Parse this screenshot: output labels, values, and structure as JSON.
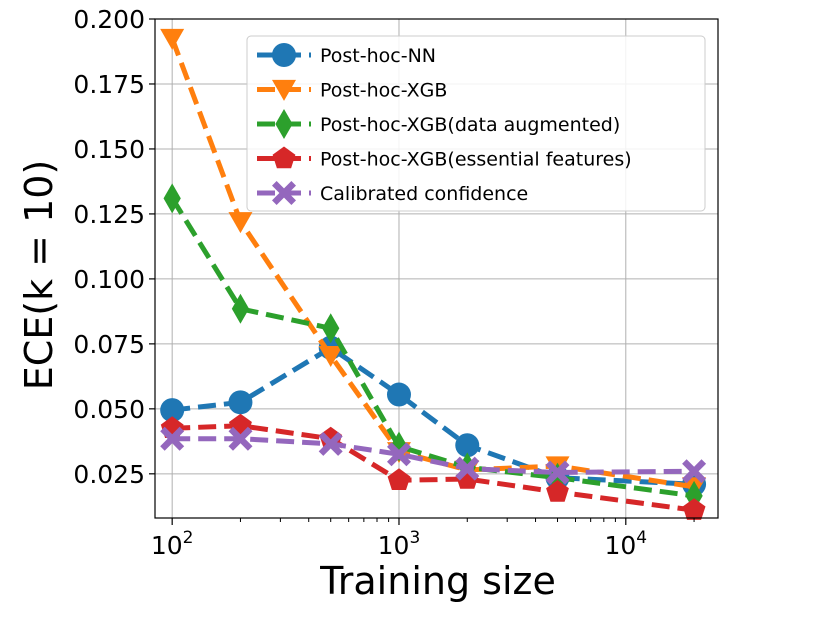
{
  "chart_data": {
    "type": "line",
    "xscale": "log",
    "xlabel": "Training size",
    "ylabel": "ECE(k = 10)",
    "xlim": [
      84,
      25500
    ],
    "ylim": [
      0.008,
      0.2
    ],
    "x_ticks": [
      {
        "value": 100,
        "base": "10",
        "exp": "2"
      },
      {
        "value": 1000,
        "base": "10",
        "exp": "3"
      },
      {
        "value": 10000,
        "base": "10",
        "exp": "4"
      }
    ],
    "y_ticks": [
      "0.025",
      "0.050",
      "0.075",
      "0.100",
      "0.125",
      "0.150",
      "0.175",
      "0.200"
    ],
    "grid": true,
    "legend_position": "top-right",
    "x": [
      100,
      200,
      500,
      1000,
      2000,
      5000,
      20000
    ],
    "series": [
      {
        "name": "Post-hoc-NN",
        "color": "#1f77b4",
        "marker": "circle",
        "values": [
          0.0495,
          0.0525,
          0.0735,
          0.0555,
          0.036,
          0.0235,
          0.021
        ]
      },
      {
        "name": "Post-hoc-XGB",
        "color": "#ff7f0e",
        "marker": "triangle-down",
        "values": [
          0.1925,
          0.122,
          0.0705,
          0.0335,
          0.0265,
          0.028,
          0.02
        ]
      },
      {
        "name": "Post-hoc-XGB(data augmented)",
        "color": "#2ca02c",
        "marker": "diamond",
        "values": [
          0.131,
          0.0885,
          0.081,
          0.0355,
          0.0275,
          0.0235,
          0.0165
        ]
      },
      {
        "name": "Post-hoc-XGB(essential features)",
        "color": "#d62728",
        "marker": "pentagon",
        "values": [
          0.0425,
          0.0435,
          0.0385,
          0.0225,
          0.023,
          0.018,
          0.011
        ]
      },
      {
        "name": "Calibrated confidence",
        "color": "#9467bd",
        "marker": "x",
        "values": [
          0.0385,
          0.0385,
          0.0365,
          0.0325,
          0.027,
          0.0255,
          0.026
        ]
      }
    ]
  }
}
